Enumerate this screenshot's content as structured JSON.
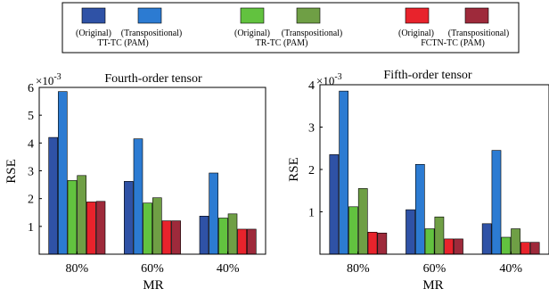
{
  "legend": {
    "groups": [
      {
        "label": "TT-TC (PAM)",
        "entries": [
          {
            "label": "(Original)",
            "color": "#2f52a6"
          },
          {
            "label": "(Transpositional)",
            "color": "#2c7bd2"
          }
        ]
      },
      {
        "label": "TR-TC (PAM)",
        "entries": [
          {
            "label": "(Original)",
            "color": "#62c23f"
          },
          {
            "label": "(Transpositional)",
            "color": "#6f9f45"
          }
        ]
      },
      {
        "label": "FCTN-TC (PAM)",
        "entries": [
          {
            "label": "(Original)",
            "color": "#e8232c"
          },
          {
            "label": "(Transpositional)",
            "color": "#9e2a3b"
          }
        ]
      }
    ]
  },
  "chart_data": [
    {
      "type": "bar",
      "title": "Fourth-order tensor",
      "xlabel": "MR",
      "ylabel": "RSE",
      "y_multiplier": "×10",
      "y_exponent": "-3",
      "categories": [
        "80%",
        "60%",
        "40%"
      ],
      "ylim": [
        0,
        6
      ],
      "yticks": [
        "1",
        "2",
        "3",
        "4",
        "5",
        "6"
      ],
      "series": [
        {
          "values": [
            4.2,
            2.62,
            1.37
          ]
        },
        {
          "values": [
            5.85,
            4.15,
            2.92
          ]
        },
        {
          "values": [
            2.65,
            1.84,
            1.3
          ]
        },
        {
          "values": [
            2.83,
            2.03,
            1.45
          ]
        },
        {
          "values": [
            1.88,
            1.2,
            0.9
          ]
        },
        {
          "values": [
            1.9,
            1.2,
            0.9
          ]
        }
      ]
    },
    {
      "type": "bar",
      "title": "Fifth-order tensor",
      "xlabel": "MR",
      "ylabel": "RSE",
      "y_multiplier": "×10",
      "y_exponent": "-3",
      "categories": [
        "80%",
        "60%",
        "40%"
      ],
      "ylim": [
        0,
        4
      ],
      "yticks": [
        "1",
        "2",
        "3",
        "4"
      ],
      "series": [
        {
          "values": [
            2.35,
            1.05,
            0.72
          ]
        },
        {
          "values": [
            3.85,
            2.12,
            2.45
          ]
        },
        {
          "values": [
            1.12,
            0.6,
            0.4
          ]
        },
        {
          "values": [
            1.55,
            0.88,
            0.6
          ]
        },
        {
          "values": [
            0.52,
            0.36,
            0.28
          ]
        },
        {
          "values": [
            0.5,
            0.36,
            0.28
          ]
        }
      ]
    }
  ]
}
